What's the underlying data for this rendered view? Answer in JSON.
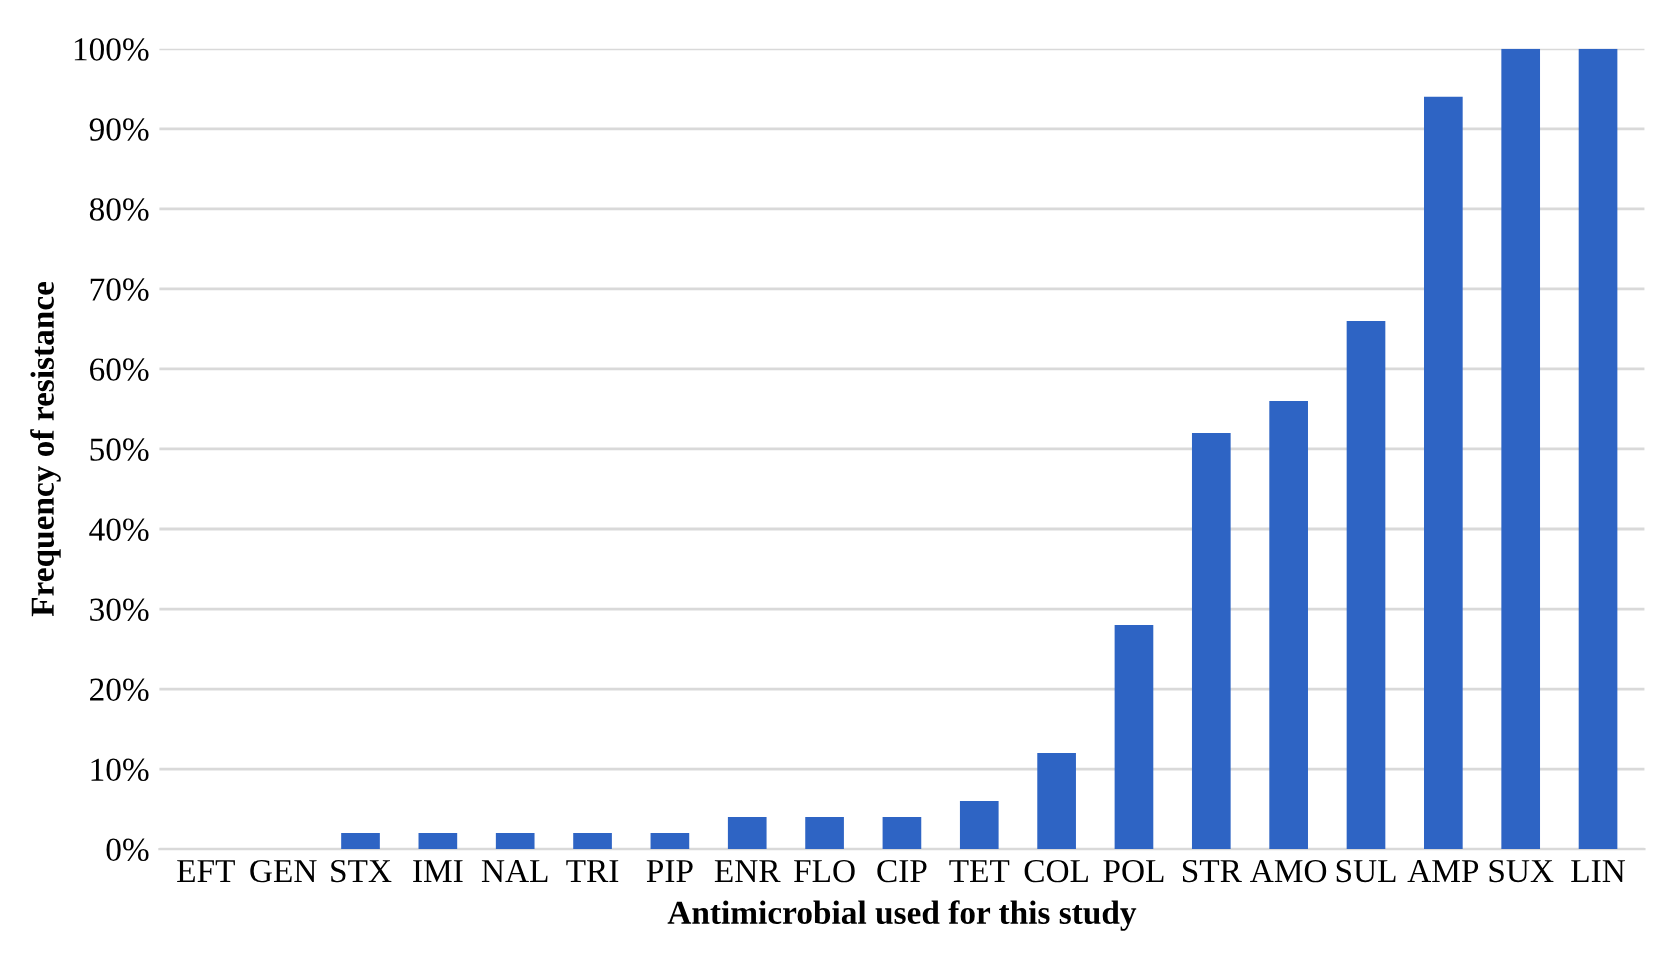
{
  "chart_data": {
    "type": "bar",
    "xlabel": "Antimicrobial used for this study",
    "ylabel": "Frequency of resistance",
    "categories": [
      "EFT",
      "GEN",
      "STX",
      "IMI",
      "NAL",
      "TRI",
      "PIP",
      "ENR",
      "FLO",
      "CIP",
      "TET",
      "COL",
      "POL",
      "STR",
      "AMO",
      "SUL",
      "AMP",
      "SUX",
      "LIN"
    ],
    "values": [
      0,
      0,
      2,
      2,
      2,
      2,
      2,
      4,
      4,
      4,
      6,
      12,
      28,
      52,
      56,
      66,
      94,
      100,
      100
    ],
    "color": "#2e64c4",
    "ylim": [
      0,
      100
    ],
    "yticks": [
      {
        "value": 0,
        "label": "0%"
      },
      {
        "value": 10,
        "label": "10%"
      },
      {
        "value": 20,
        "label": "20%"
      },
      {
        "value": 30,
        "label": "30%"
      },
      {
        "value": 40,
        "label": "40%"
      },
      {
        "value": 50,
        "label": "50%"
      },
      {
        "value": 60,
        "label": "60%"
      },
      {
        "value": 70,
        "label": "70%"
      },
      {
        "value": 80,
        "label": "80%"
      },
      {
        "value": 90,
        "label": "90%"
      },
      {
        "value": 100,
        "label": "100%"
      }
    ],
    "grid": "y"
  }
}
